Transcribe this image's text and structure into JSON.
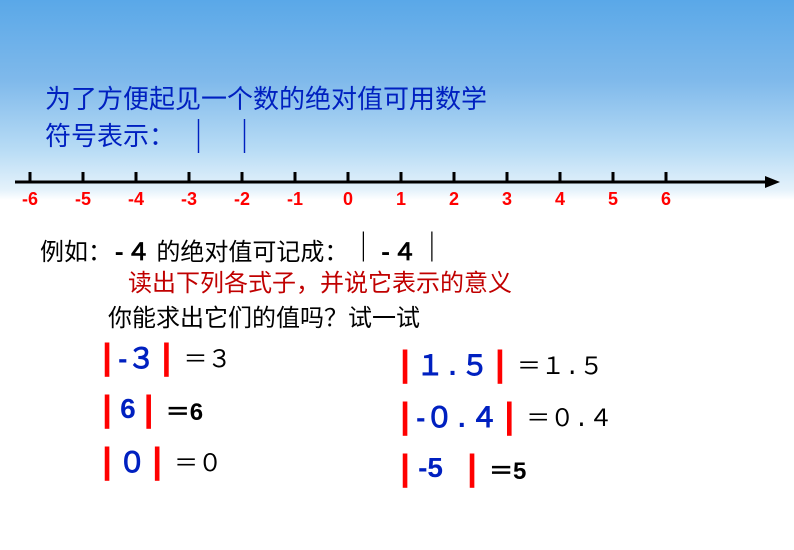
{
  "intro": {
    "line1": "为了方便起见一个数的绝对值可用数学",
    "line2": "符号表示：",
    "bar_color": "#000000"
  },
  "numberLine": {
    "ticks": [
      "-6",
      "-5",
      "-4",
      "-3",
      "-2",
      "-1",
      "0",
      "1",
      "2",
      "3",
      "4",
      "5",
      "6"
    ],
    "tick_color": "#ff0000",
    "line_color": "#000000"
  },
  "example": {
    "prefix": "例如：",
    "value": "-４",
    "mid": " 的绝对值可记成：",
    "bar_l": "｜",
    "inner": "-４",
    "bar_r": "｜"
  },
  "readLine": "读出下列各式子，并说它表示的意义",
  "tryLine": "你能求出它们的值吗？试一试",
  "items": {
    "a": {
      "val_prefix": "-",
      "val": "３",
      "eq": "＝３"
    },
    "b": {
      "val": "6",
      "eq": "＝6"
    },
    "c": {
      "val": "０",
      "eq": "＝０"
    },
    "d": {
      "val": "１.５",
      "eq": "＝１.５"
    },
    "e": {
      "val_prefix": "-",
      "val": "０.４",
      "eq": "＝０.４"
    },
    "f": {
      "val": "-5",
      "eq": "＝5"
    }
  }
}
